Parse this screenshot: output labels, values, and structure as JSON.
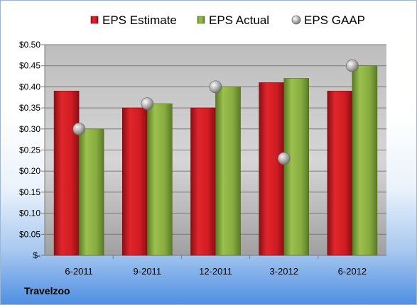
{
  "company": "Travelzoo",
  "chart_data": {
    "type": "bar",
    "categories": [
      "6-2011",
      "9-2011",
      "12-2011",
      "3-2012",
      "6-2012"
    ],
    "series": [
      {
        "name": "EPS Estimate",
        "kind": "bar",
        "color": "#c8141e",
        "values": [
          0.39,
          0.35,
          0.35,
          0.41,
          0.39
        ]
      },
      {
        "name": "EPS Actual",
        "kind": "bar",
        "color": "#7fa23a",
        "values": [
          0.3,
          0.36,
          0.4,
          0.42,
          0.45
        ]
      },
      {
        "name": "EPS GAAP",
        "kind": "scatter",
        "color": "#b9b9b9",
        "values": [
          0.3,
          0.36,
          0.4,
          0.23,
          0.45
        ]
      }
    ],
    "ylim": [
      0,
      0.5
    ],
    "yticks": [
      0,
      0.05,
      0.1,
      0.15,
      0.2,
      0.25,
      0.3,
      0.35,
      0.4,
      0.45,
      0.5
    ],
    "ytick_labels": [
      "$-",
      "$0.05",
      "$0.10",
      "$0.15",
      "$0.20",
      "$0.25",
      "$0.30",
      "$0.35",
      "$0.40",
      "$0.45",
      "$0.50"
    ],
    "grid": true,
    "legend": "top"
  }
}
